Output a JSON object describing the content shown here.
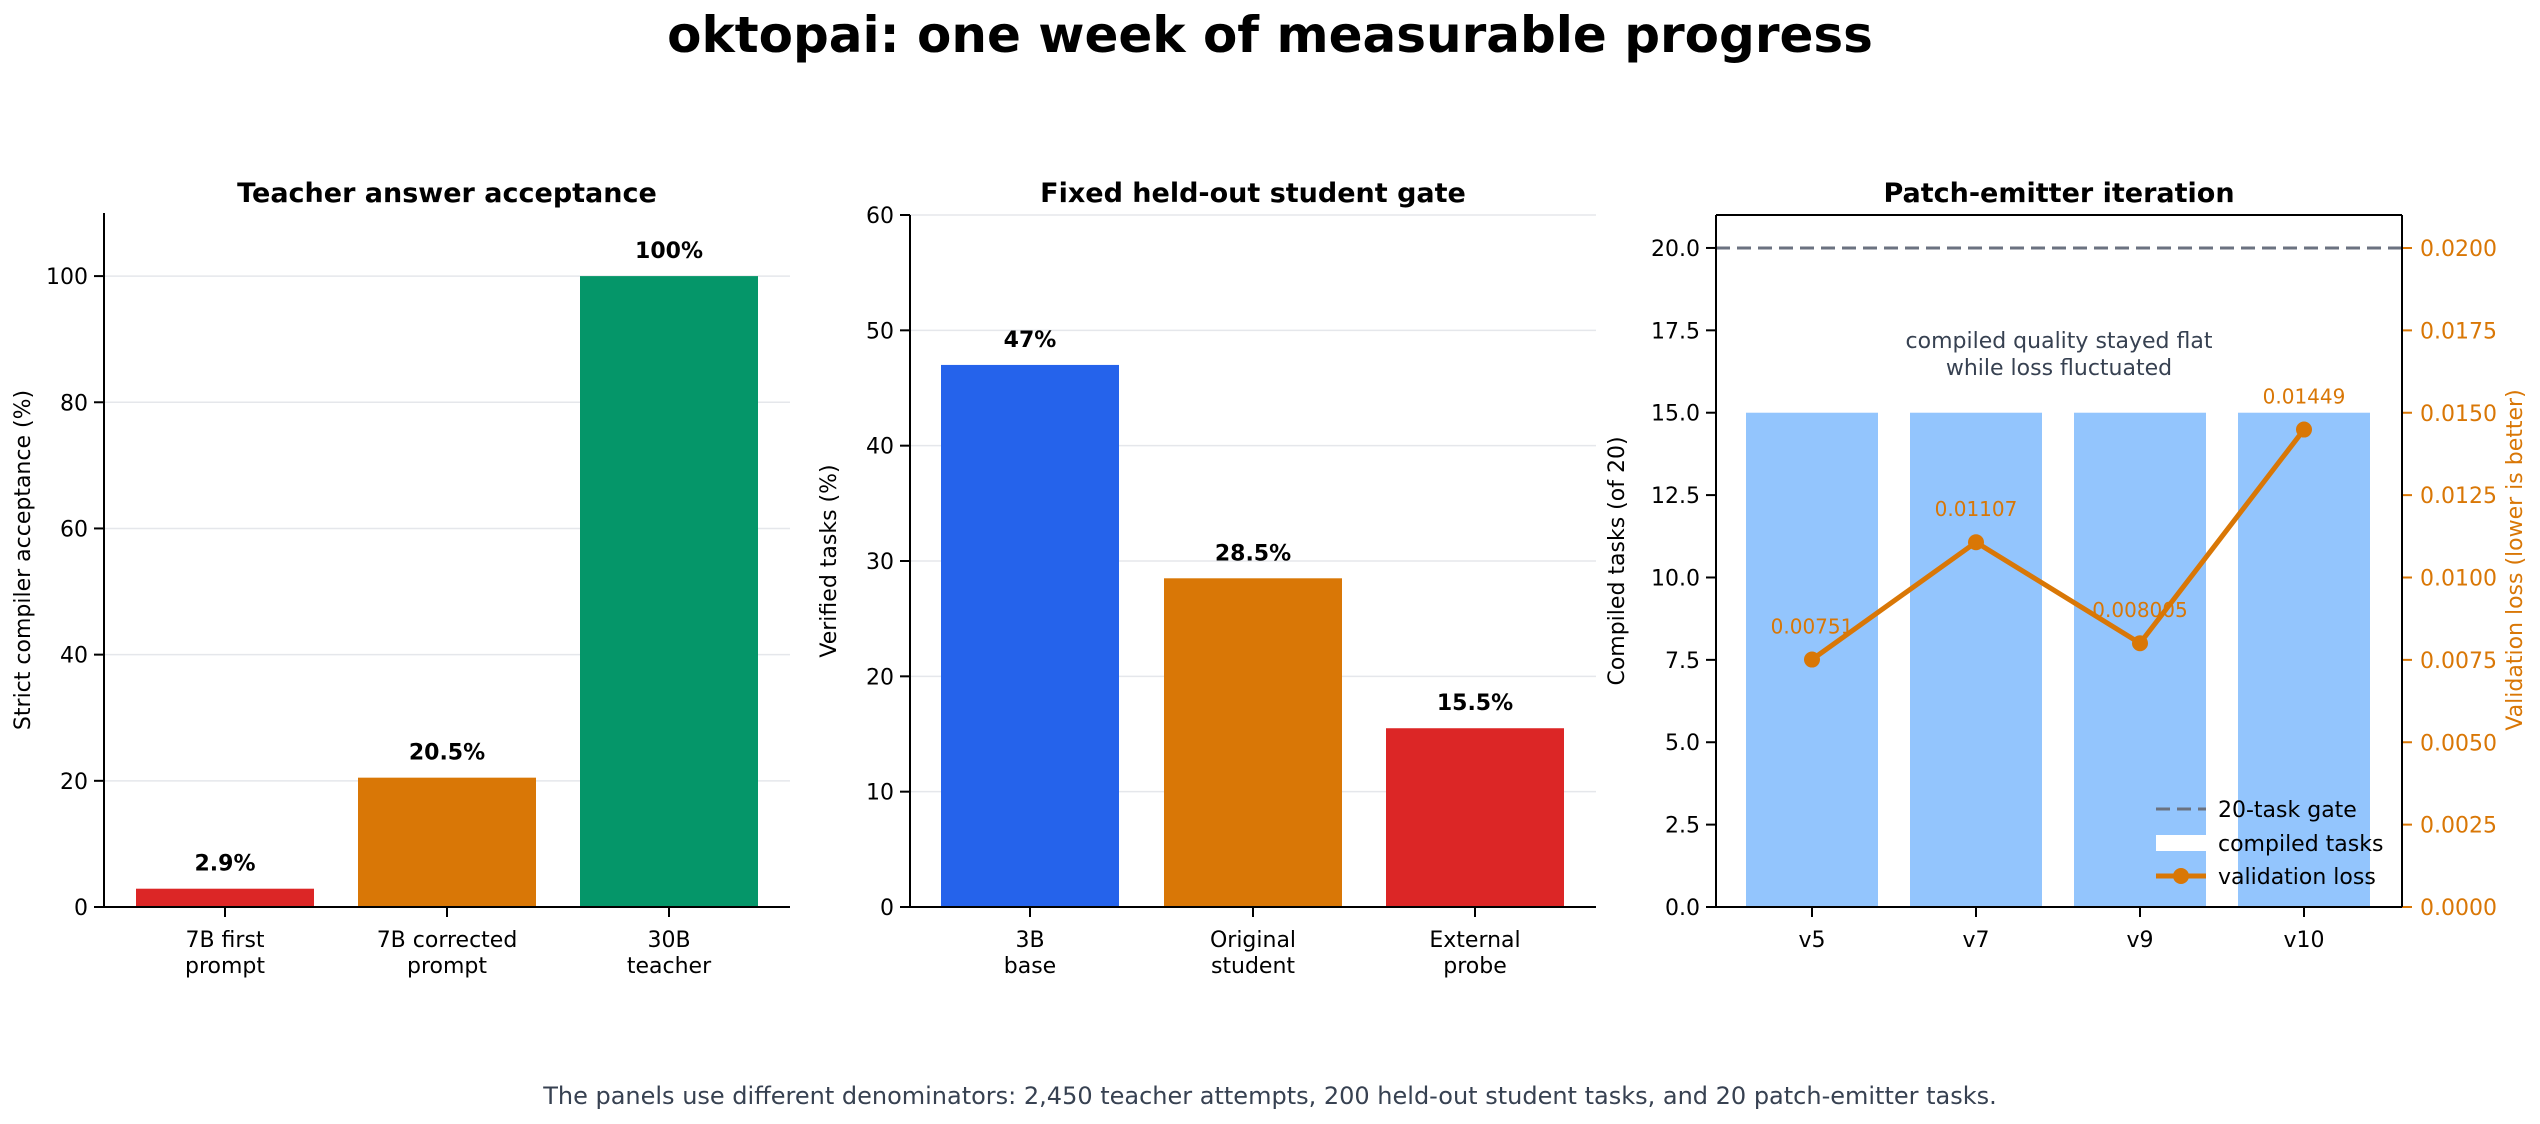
{
  "figure": {
    "title": "oktopai: one week of measurable progress",
    "footnote": "The panels use different denominators: 2,450 teacher attempts, 200 held-out student tasks, and 20 patch-emitter tasks."
  },
  "colors": {
    "red": "#dc2626",
    "orange": "#d97706",
    "green": "#059669",
    "blue": "#2563eb",
    "light_blue": "#93c5fd",
    "gate_gray": "#6b7280",
    "note_gray": "#374151",
    "grid": "#e5e7eb"
  },
  "chart_data": [
    {
      "type": "bar",
      "title": "Teacher answer acceptance",
      "ylabel": "Strict compiler acceptance (%)",
      "categories": [
        [
          "7B first",
          "prompt"
        ],
        [
          "7B corrected",
          "prompt"
        ],
        [
          "30B",
          "teacher"
        ]
      ],
      "values": [
        2.9,
        20.5,
        100
      ],
      "value_labels": [
        "2.9%",
        "20.5%",
        "100%"
      ],
      "bar_colors": [
        "#dc2626",
        "#d97706",
        "#059669"
      ],
      "ylim": [
        0,
        110
      ],
      "yticks": [
        0,
        20,
        40,
        60,
        80,
        100
      ],
      "ytick_labels": [
        "0",
        "20",
        "40",
        "60",
        "80",
        "100"
      ],
      "grid": true
    },
    {
      "type": "bar",
      "title": "Fixed held-out student gate",
      "ylabel": "Verified tasks (%)",
      "categories": [
        [
          "3B",
          "base"
        ],
        [
          "Original",
          "student"
        ],
        [
          "External",
          "probe"
        ]
      ],
      "values": [
        47,
        28.5,
        15.5
      ],
      "value_labels": [
        "47%",
        "28.5%",
        "15.5%"
      ],
      "bar_colors": [
        "#2563eb",
        "#d97706",
        "#dc2626"
      ],
      "ylim": [
        0,
        60
      ],
      "yticks": [
        0,
        10,
        20,
        30,
        40,
        50,
        60
      ],
      "ytick_labels": [
        "0",
        "10",
        "20",
        "30",
        "40",
        "50",
        "60"
      ],
      "grid": true
    },
    {
      "type": "bar+line",
      "title": "Patch-emitter iteration",
      "ylabel": "Compiled tasks (of 20)",
      "y2label": "Validation loss (lower is better)",
      "categories": [
        "v5",
        "v7",
        "v9",
        "v10"
      ],
      "bars": {
        "name": "compiled tasks",
        "values": [
          15,
          15,
          15,
          15
        ],
        "color": "#93c5fd"
      },
      "line": {
        "name": "validation loss",
        "values": [
          0.00751,
          0.01107,
          0.008005,
          0.01449
        ],
        "value_labels": [
          "0.00751",
          "0.01107",
          "0.008005",
          "0.01449"
        ],
        "color": "#d97706"
      },
      "gate": {
        "name": "20-task gate",
        "value": 20,
        "color": "#6b7280"
      },
      "annotation": [
        "compiled quality stayed flat",
        "while loss fluctuated"
      ],
      "ylim": [
        0,
        21
      ],
      "yticks": [
        0,
        2.5,
        5,
        7.5,
        10,
        12.5,
        15,
        17.5,
        20
      ],
      "ytick_labels": [
        "0.0",
        "2.5",
        "5.0",
        "7.5",
        "10.0",
        "12.5",
        "15.0",
        "17.5",
        "20.0"
      ],
      "y2lim": [
        0,
        0.02
      ],
      "y2ticks": [
        0,
        0.0025,
        0.005,
        0.0075,
        0.01,
        0.0125,
        0.015,
        0.0175,
        0.02
      ],
      "y2tick_labels": [
        "0.0000",
        "0.0025",
        "0.0050",
        "0.0075",
        "0.0100",
        "0.0125",
        "0.0150",
        "0.0175",
        "0.0200"
      ],
      "legend": [
        "20-task gate",
        "compiled tasks",
        "validation loss"
      ],
      "legend_position": "lower-right"
    }
  ]
}
